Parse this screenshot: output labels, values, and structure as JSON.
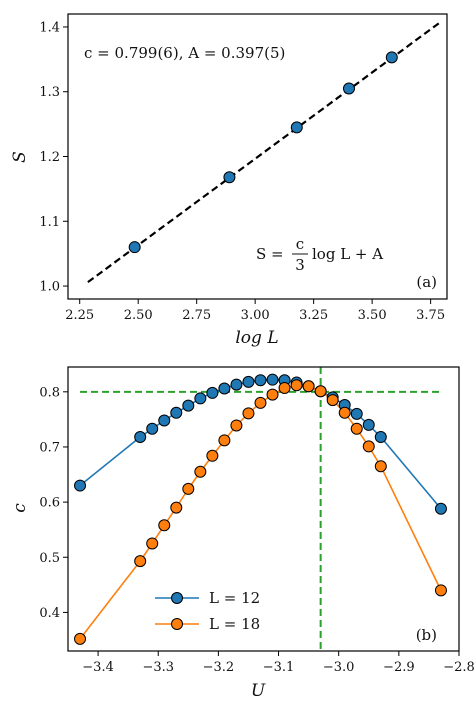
{
  "chart_data": [
    {
      "type": "scatter",
      "panel_label": "(a)",
      "xlabel": "log L",
      "ylabel": "S",
      "xlim": [
        2.2,
        3.82
      ],
      "ylim": [
        0.98,
        1.42
      ],
      "xticks": [
        2.25,
        2.5,
        2.75,
        3.0,
        3.25,
        3.5,
        3.75
      ],
      "xtick_labels": [
        "2.25",
        "2.50",
        "2.75",
        "3.00",
        "3.25",
        "3.50",
        "3.75"
      ],
      "yticks": [
        1.0,
        1.1,
        1.2,
        1.3,
        1.4
      ],
      "ytick_labels": [
        "1.0",
        "1.1",
        "1.2",
        "1.3",
        "1.4"
      ],
      "grid": false,
      "fit_text": "c = 0.799(6), A = 0.397(5)",
      "formula_lhs": "S =",
      "formula_num": "c",
      "formula_den": "3",
      "formula_rhs": "log L + A",
      "series": [
        {
          "x": [
            2.485,
            2.89,
            3.178,
            3.401,
            3.584
          ],
          "y": [
            1.06,
            1.168,
            1.245,
            1.305,
            1.353
          ],
          "marker": "circle",
          "color": "#1f77b4"
        }
      ],
      "fit_line": {
        "x": [
          2.285,
          3.79
        ],
        "y": [
          1.006,
          1.407
        ],
        "style": "dashed",
        "color": "#000000"
      }
    },
    {
      "type": "line",
      "panel_label": "(b)",
      "xlabel": "U",
      "ylabel": "c",
      "xlim": [
        -3.45,
        -2.8
      ],
      "ylim": [
        0.33,
        0.845
      ],
      "xticks": [
        -3.4,
        -3.3,
        -3.2,
        -3.1,
        -3.0,
        -2.9,
        -2.8
      ],
      "xtick_labels": [
        "−3.4",
        "−3.3",
        "−3.2",
        "−3.1",
        "−3.0",
        "−2.9",
        "−2.8"
      ],
      "yticks": [
        0.4,
        0.5,
        0.6,
        0.7,
        0.8
      ],
      "ytick_labels": [
        "0.4",
        "0.5",
        "0.6",
        "0.7",
        "0.8"
      ],
      "grid": false,
      "legend_position": "lower-left",
      "series": [
        {
          "name": "L = 12",
          "color": "#1f77b4",
          "x": [
            -3.43,
            -3.33,
            -3.31,
            -3.29,
            -3.27,
            -3.25,
            -3.23,
            -3.21,
            -3.19,
            -3.17,
            -3.15,
            -3.13,
            -3.11,
            -3.09,
            -3.07,
            -3.05,
            -3.03,
            -3.01,
            -2.99,
            -2.97,
            -2.95,
            -2.93,
            -2.83
          ],
          "y": [
            0.63,
            0.718,
            0.733,
            0.748,
            0.762,
            0.775,
            0.788,
            0.798,
            0.806,
            0.813,
            0.818,
            0.821,
            0.822,
            0.821,
            0.817,
            0.81,
            0.801,
            0.79,
            0.776,
            0.76,
            0.74,
            0.718,
            0.588
          ]
        },
        {
          "name": "L = 18",
          "color": "#ff7f0e",
          "x": [
            -3.43,
            -3.33,
            -3.31,
            -3.29,
            -3.27,
            -3.25,
            -3.23,
            -3.21,
            -3.19,
            -3.17,
            -3.15,
            -3.13,
            -3.11,
            -3.09,
            -3.07,
            -3.05,
            -3.03,
            -3.01,
            -2.99,
            -2.97,
            -2.95,
            -2.93,
            -2.83
          ],
          "y": [
            0.352,
            0.493,
            0.525,
            0.558,
            0.59,
            0.624,
            0.655,
            0.684,
            0.712,
            0.739,
            0.761,
            0.78,
            0.795,
            0.807,
            0.812,
            0.81,
            0.801,
            0.785,
            0.762,
            0.733,
            0.701,
            0.665,
            0.44
          ]
        }
      ],
      "reference_lines": [
        {
          "orientation": "horizontal",
          "value": 0.8,
          "style": "dashed",
          "color": "#2ca02c"
        },
        {
          "orientation": "vertical",
          "value": -3.03,
          "style": "dashed",
          "color": "#2ca02c"
        }
      ]
    }
  ]
}
